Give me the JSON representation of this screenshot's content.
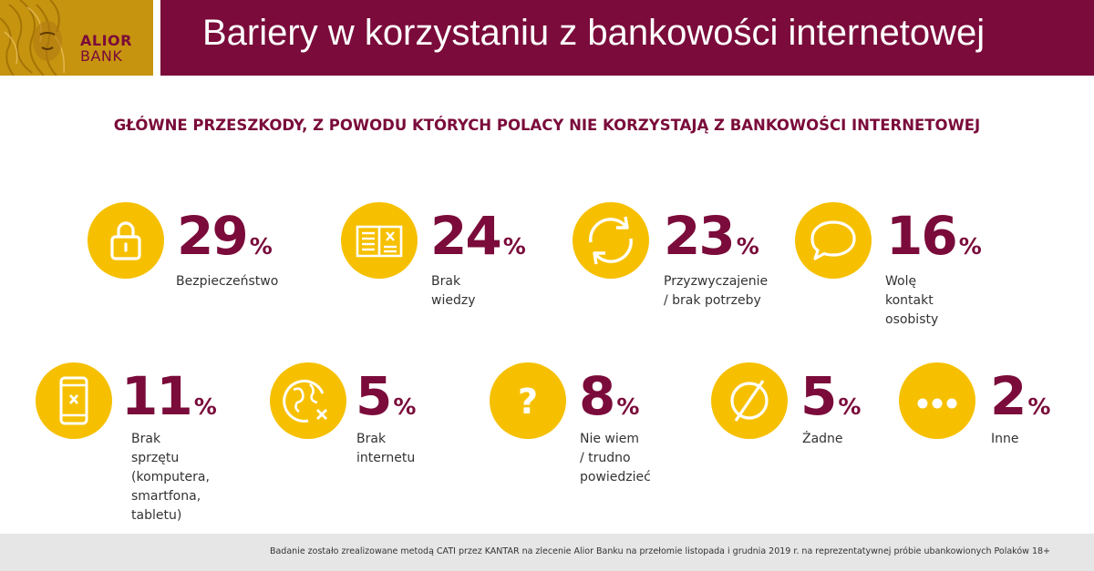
{
  "header": {
    "logo_line1": "ALIOR",
    "logo_line2": "BANK",
    "title": "Bariery w korzystaniu z bankowości internetowej"
  },
  "subtitle": "GŁÓWNE PRZESZKODY, Z POWODU KTÓRYCH POLACY NIE KORZYSTAJĄ Z BANKOWOŚCI INTERNETOWEJ",
  "colors": {
    "brand": "#7a0b3a",
    "accent": "#f6c000",
    "logo_bg": "#c6940f"
  },
  "chart_data": {
    "type": "table",
    "unit": "%",
    "items": [
      {
        "value": "29",
        "label": "Bezpieczeństwo",
        "icon": "padlock-icon"
      },
      {
        "value": "24",
        "label": "Brak wiedzy",
        "icon": "book-cross-icon"
      },
      {
        "value": "23",
        "label": "Przyzwyczajenie\n/ brak potrzeby",
        "icon": "refresh-arrows-icon"
      },
      {
        "value": "16",
        "label": "Wolę kontakt\nosobisty",
        "icon": "speech-bubble-icon"
      },
      {
        "value": "11",
        "label": "Brak sprzętu\n(komputera,\nsmartfona, tabletu)",
        "icon": "phone-cross-icon"
      },
      {
        "value": "5",
        "label": "Brak internetu",
        "icon": "globe-cross-icon"
      },
      {
        "value": "8",
        "label": "Nie wiem\n/ trudno powiedzieć",
        "icon": "question-mark-icon"
      },
      {
        "value": "5",
        "label": "Żadne",
        "icon": "empty-set-icon"
      },
      {
        "value": "2",
        "label": "Inne",
        "icon": "ellipsis-icon"
      }
    ]
  },
  "footnote": "Badanie zostało zrealizowane metodą CATI przez KANTAR na zlecenie Alior Banku na przełomie listopada i grudnia 2019 r. na reprezentatywnej próbie ubankowionych Polaków 18+"
}
